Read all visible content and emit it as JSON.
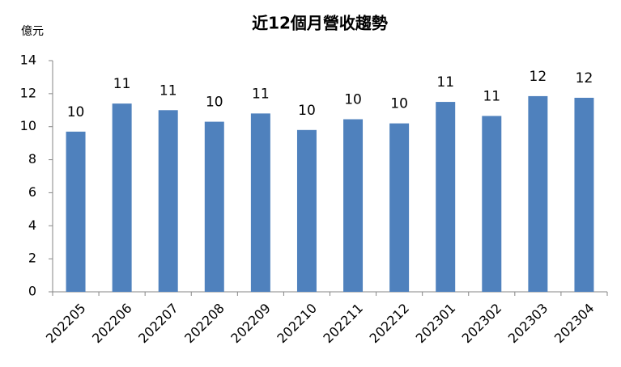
{
  "chart_data": {
    "type": "bar",
    "title": "近12個月營收趨勢",
    "y_label": "億元",
    "categories": [
      "202205",
      "202206",
      "202207",
      "202208",
      "202209",
      "202210",
      "202211",
      "202212",
      "202301",
      "202302",
      "202303",
      "202304"
    ],
    "values": [
      9.7,
      11.4,
      11.0,
      10.3,
      10.8,
      9.8,
      10.45,
      10.2,
      11.5,
      10.65,
      11.85,
      11.75
    ],
    "value_labels": [
      "10",
      "11",
      "11",
      "10",
      "11",
      "10",
      "10",
      "10",
      "11",
      "11",
      "12",
      "12"
    ],
    "color": "#4f81bd",
    "ylim": [
      0,
      14
    ],
    "yticks": [
      0,
      2,
      4,
      6,
      8,
      10,
      12,
      14
    ],
    "grid": false
  }
}
